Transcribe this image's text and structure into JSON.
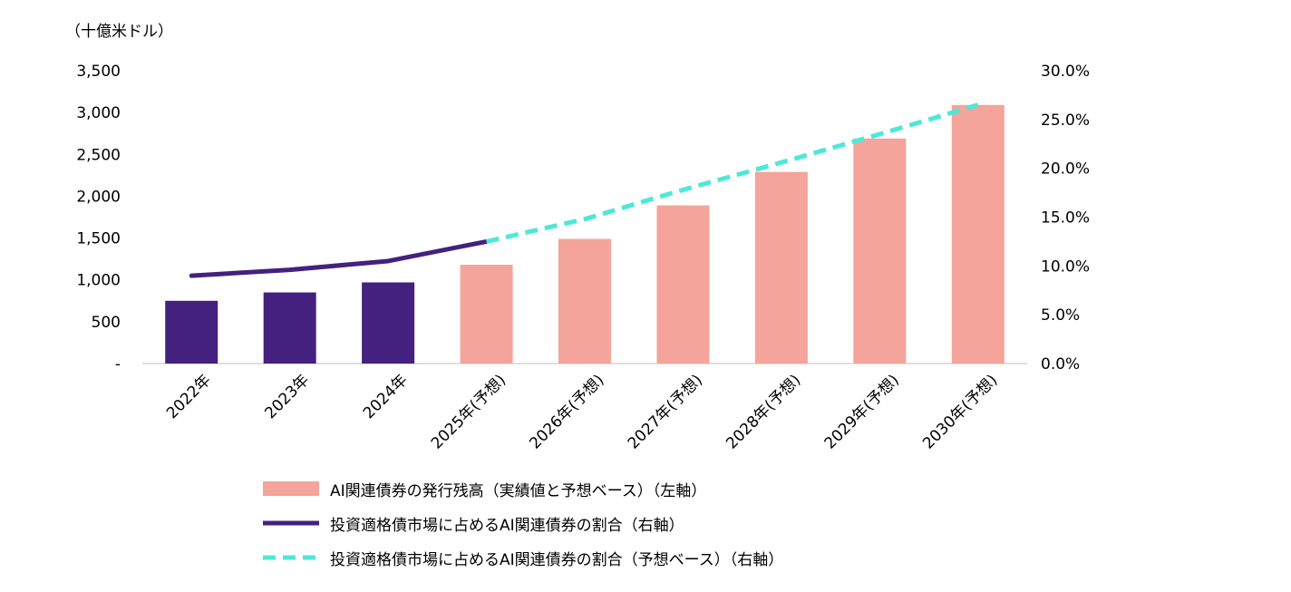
{
  "chart_data": {
    "type": "bar+line",
    "unit_label": "（十億米ドル）",
    "categories": [
      "2022年",
      "2023年",
      "2024年",
      "2025年(予想)",
      "2026年(予想)",
      "2027年(予想)",
      "2028年(予想)",
      "2029年(予想)",
      "2030年(予想)"
    ],
    "bar_series": {
      "name": "AI関連債券の発行残高（実績値と予想ベース）（左軸）",
      "values": [
        750,
        850,
        970,
        1180,
        1490,
        1890,
        2290,
        2690,
        3090
      ],
      "actual_count": 3,
      "color_actual": "#44207f",
      "color_forecast": "#f4a49a"
    },
    "line_actual": {
      "name": "投資適格債市場に占めるAI関連債券の割合（右軸）",
      "x_index": [
        0,
        1,
        2,
        3
      ],
      "values": [
        9.0,
        9.6,
        10.5,
        12.5
      ],
      "color": "#44207f"
    },
    "line_forecast": {
      "name": "投資適格債市場に占めるAI関連債券の割合（予想ベース）（右軸）",
      "x_index": [
        3,
        4,
        5,
        6,
        7,
        8
      ],
      "values": [
        12.5,
        14.8,
        17.8,
        20.6,
        23.5,
        26.5
      ],
      "color": "#4de8d8"
    },
    "left_axis": {
      "min": 0,
      "max": 3500,
      "ticks": [
        "-",
        "500",
        "1,000",
        "1,500",
        "2,000",
        "2,500",
        "3,000",
        "3,500"
      ]
    },
    "right_axis": {
      "min": 0,
      "max": 30,
      "ticks": [
        "0.0%",
        "5.0%",
        "10.0%",
        "15.0%",
        "20.0%",
        "25.0%",
        "30.0%"
      ]
    }
  }
}
